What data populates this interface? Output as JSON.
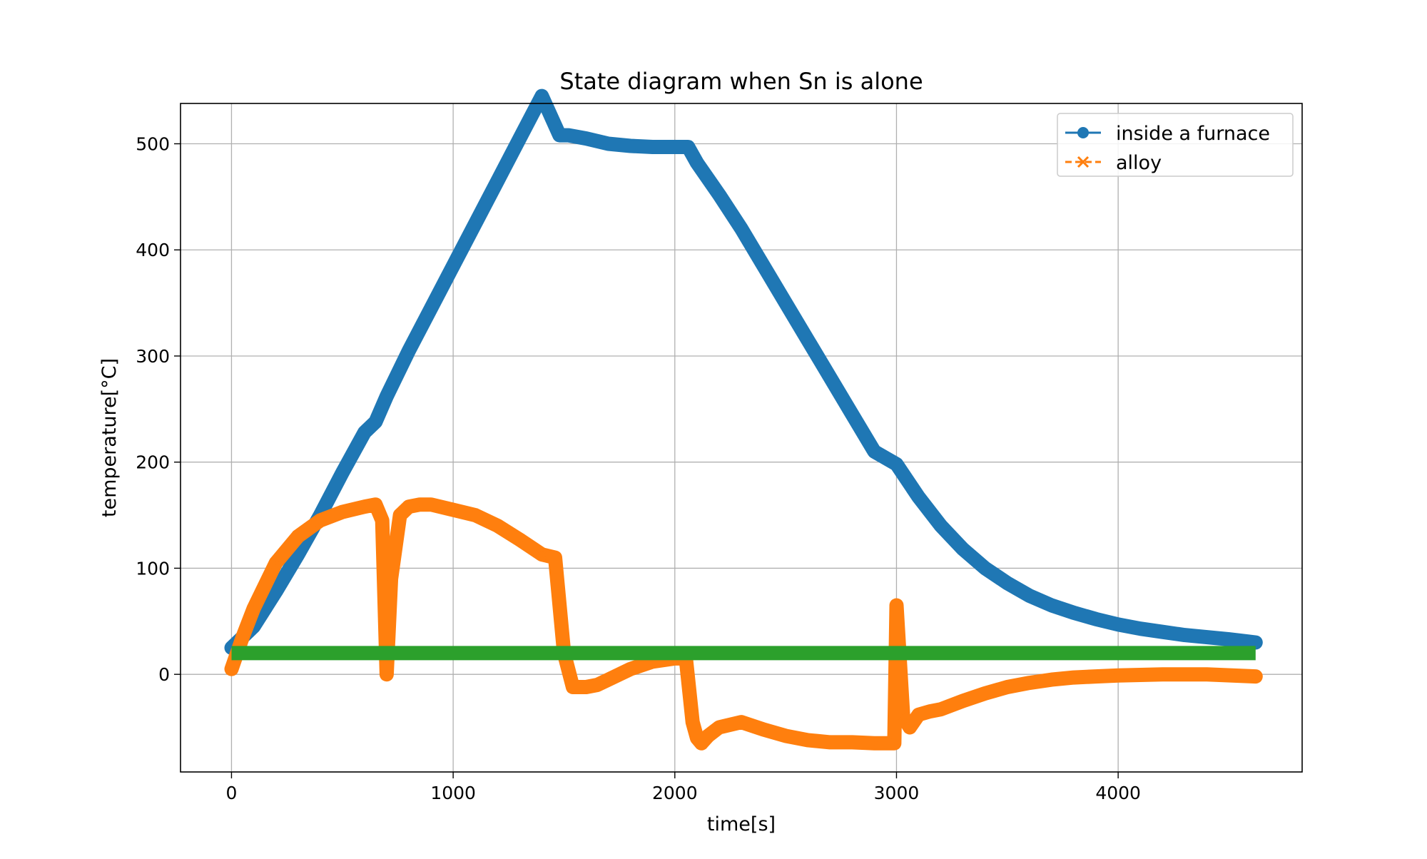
{
  "chart_data": {
    "type": "line",
    "title": "State diagram when Sn is alone",
    "xlabel": "time[s]",
    "ylabel": "temperature[°C]",
    "xlim": [
      -230,
      4830
    ],
    "ylim": [
      -92,
      538
    ],
    "xticks": [
      0,
      1000,
      2000,
      3000,
      4000
    ],
    "yticks": [
      0,
      100,
      200,
      300,
      400,
      500
    ],
    "grid": true,
    "legend_position": "top-right",
    "series": [
      {
        "name": "inside a furnace",
        "color": "#1f77b4",
        "marker": "circle",
        "linestyle": "solid",
        "x": [
          0,
          100,
          200,
          300,
          400,
          500,
          600,
          650,
          700,
          800,
          900,
          1000,
          1100,
          1200,
          1300,
          1400,
          1480,
          1520,
          1600,
          1700,
          1800,
          1900,
          2000,
          2060,
          2100,
          2200,
          2300,
          2400,
          2500,
          2600,
          2700,
          2800,
          2900,
          3000,
          3100,
          3200,
          3300,
          3400,
          3500,
          3600,
          3700,
          3800,
          3900,
          4000,
          4100,
          4200,
          4300,
          4400,
          4500,
          4620
        ],
        "y": [
          25,
          45,
          78,
          113,
          150,
          190,
          228,
          238,
          262,
          305,
          345,
          385,
          425,
          465,
          505,
          545,
          508,
          508,
          505,
          500,
          498,
          497,
          497,
          497,
          482,
          452,
          420,
          385,
          350,
          315,
          280,
          245,
          210,
          198,
          167,
          140,
          118,
          100,
          86,
          74,
          65,
          58,
          52,
          47,
          43,
          40,
          37,
          35,
          33,
          30
        ]
      },
      {
        "name": "alloy",
        "color": "#ff7f0e",
        "marker": "x",
        "linestyle": "dashed",
        "x": [
          0,
          50,
          100,
          200,
          300,
          400,
          500,
          600,
          650,
          680,
          700,
          720,
          760,
          800,
          850,
          900,
          1000,
          1100,
          1200,
          1300,
          1400,
          1460,
          1500,
          1540,
          1600,
          1650,
          1700,
          1800,
          1900,
          2000,
          2050,
          2080,
          2100,
          2120,
          2150,
          2200,
          2300,
          2400,
          2500,
          2600,
          2700,
          2800,
          2900,
          2990,
          3000,
          3010,
          3030,
          3060,
          3100,
          3150,
          3200,
          3300,
          3400,
          3500,
          3600,
          3700,
          3800,
          3900,
          4000,
          4200,
          4400,
          4620
        ],
        "y": [
          5,
          35,
          62,
          105,
          130,
          145,
          153,
          158,
          160,
          145,
          0,
          90,
          150,
          158,
          160,
          160,
          155,
          150,
          140,
          127,
          113,
          110,
          20,
          -12,
          -12,
          -10,
          -5,
          5,
          12,
          15,
          15,
          -45,
          -60,
          -65,
          -58,
          -50,
          -45,
          -52,
          -58,
          -62,
          -64,
          -64,
          -65,
          -65,
          65,
          30,
          -40,
          -50,
          -38,
          -35,
          -33,
          -25,
          -18,
          -12,
          -8,
          -5,
          -3,
          -2,
          -1,
          0,
          0,
          -2
        ]
      },
      {
        "color": "#2ca02c",
        "marker": "none",
        "linestyle": "solid",
        "x": [
          0,
          4620
        ],
        "y": [
          20,
          20
        ]
      }
    ]
  }
}
